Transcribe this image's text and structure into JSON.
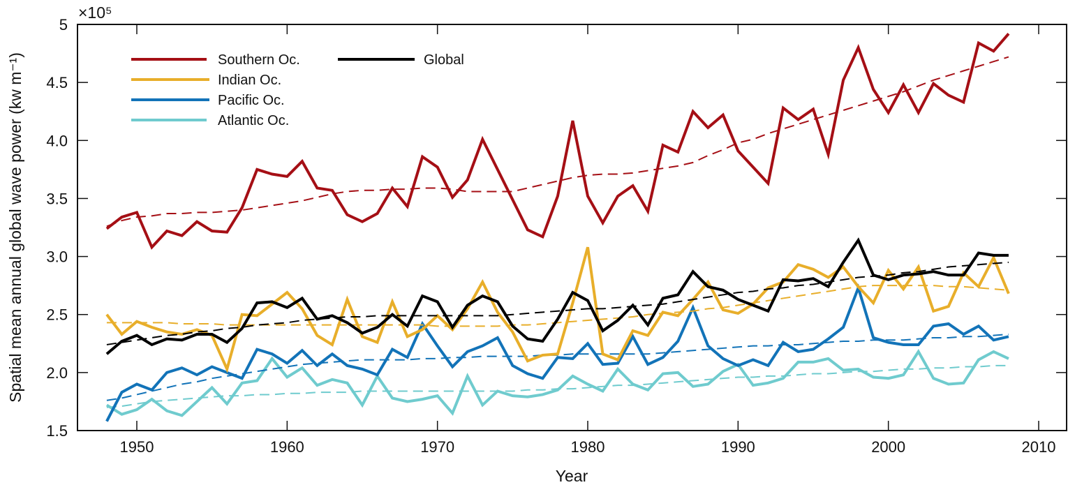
{
  "chart_data": {
    "type": "line",
    "title": "",
    "xlabel": "Year",
    "ylabel": "Spatial mean annual global wave power (kw m⁻¹)",
    "y_multiplier": "×10⁵",
    "xlim": [
      1944,
      2012
    ],
    "ylim": [
      1.5,
      5
    ],
    "xticks": [
      1950,
      1960,
      1970,
      1980,
      1990,
      2000,
      2010
    ],
    "yticks": [
      1.5,
      2.0,
      2.5,
      3.0,
      3.5,
      4.0,
      4.5,
      5
    ],
    "ytick_labels": [
      "1.5",
      "2.0",
      "2.5",
      "3.0",
      "3.5",
      "4.0",
      "4.5",
      "5"
    ],
    "legend_position": "top-left",
    "x": [
      1948,
      1949,
      1950,
      1951,
      1952,
      1953,
      1954,
      1955,
      1956,
      1957,
      1958,
      1959,
      1960,
      1961,
      1962,
      1963,
      1964,
      1965,
      1966,
      1967,
      1968,
      1969,
      1970,
      1971,
      1972,
      1973,
      1974,
      1975,
      1976,
      1977,
      1978,
      1979,
      1980,
      1981,
      1982,
      1983,
      1984,
      1985,
      1986,
      1987,
      1988,
      1989,
      1990,
      1991,
      1992,
      1993,
      1994,
      1995,
      1996,
      1997,
      1998,
      1999,
      2000,
      2001,
      2002,
      2003,
      2004,
      2005,
      2006,
      2007,
      2008
    ],
    "series": [
      {
        "name": "Southern Oc.",
        "color": "#a50f15",
        "values": [
          3.24,
          3.34,
          3.38,
          3.08,
          3.22,
          3.18,
          3.3,
          3.22,
          3.21,
          3.42,
          3.75,
          3.71,
          3.69,
          3.82,
          3.59,
          3.57,
          3.36,
          3.3,
          3.37,
          3.59,
          3.43,
          3.86,
          3.77,
          3.51,
          3.66,
          4.01,
          3.75,
          3.49,
          3.23,
          3.17,
          3.52,
          4.17,
          3.52,
          3.29,
          3.52,
          3.61,
          3.39,
          3.96,
          3.9,
          4.25,
          4.11,
          4.22,
          3.91,
          3.77,
          3.63,
          4.28,
          4.18,
          4.27,
          3.88,
          4.52,
          4.8,
          4.44,
          4.24,
          4.48,
          4.24,
          4.49,
          4.39,
          4.33,
          4.84,
          4.77,
          4.92
        ],
        "trend": [
          3.26,
          3.31,
          3.34,
          3.35,
          3.37,
          3.37,
          3.38,
          3.38,
          3.39,
          3.4,
          3.42,
          3.44,
          3.46,
          3.48,
          3.51,
          3.54,
          3.56,
          3.57,
          3.57,
          3.58,
          3.58,
          3.59,
          3.59,
          3.58,
          3.56,
          3.56,
          3.56,
          3.56,
          3.59,
          3.62,
          3.65,
          3.68,
          3.7,
          3.71,
          3.71,
          3.72,
          3.74,
          3.76,
          3.78,
          3.81,
          3.87,
          3.92,
          3.98,
          4.01,
          4.06,
          4.1,
          4.14,
          4.18,
          4.22,
          4.26,
          4.3,
          4.34,
          4.38,
          4.42,
          4.47,
          4.52,
          4.56,
          4.6,
          4.64,
          4.68,
          4.72
        ]
      },
      {
        "name": "Indian Oc.",
        "color": "#e8ae2a",
        "values": [
          2.5,
          2.33,
          2.44,
          2.39,
          2.35,
          2.33,
          2.37,
          2.32,
          2.03,
          2.5,
          2.49,
          2.59,
          2.69,
          2.55,
          2.32,
          2.24,
          2.63,
          2.31,
          2.26,
          2.61,
          2.31,
          2.37,
          2.49,
          2.37,
          2.55,
          2.78,
          2.52,
          2.35,
          2.1,
          2.15,
          2.16,
          2.6,
          3.08,
          2.16,
          2.11,
          2.36,
          2.32,
          2.52,
          2.49,
          2.63,
          2.78,
          2.54,
          2.51,
          2.59,
          2.73,
          2.78,
          2.93,
          2.89,
          2.82,
          2.91,
          2.74,
          2.6,
          2.88,
          2.72,
          2.91,
          2.53,
          2.57,
          2.86,
          2.74,
          2.99,
          2.68
        ],
        "trend": [
          2.43,
          2.43,
          2.43,
          2.43,
          2.43,
          2.42,
          2.42,
          2.42,
          2.41,
          2.41,
          2.41,
          2.41,
          2.41,
          2.41,
          2.41,
          2.41,
          2.41,
          2.41,
          2.41,
          2.41,
          2.41,
          2.41,
          2.4,
          2.4,
          2.4,
          2.4,
          2.4,
          2.41,
          2.41,
          2.42,
          2.43,
          2.44,
          2.45,
          2.46,
          2.47,
          2.48,
          2.5,
          2.51,
          2.52,
          2.53,
          2.55,
          2.56,
          2.58,
          2.6,
          2.62,
          2.64,
          2.66,
          2.68,
          2.7,
          2.72,
          2.74,
          2.75,
          2.75,
          2.75,
          2.75,
          2.75,
          2.74,
          2.74,
          2.73,
          2.72,
          2.71
        ]
      },
      {
        "name": "Pacific Oc.",
        "color": "#1273b8",
        "values": [
          1.58,
          1.83,
          1.9,
          1.85,
          2.0,
          2.04,
          1.98,
          2.05,
          2.0,
          1.95,
          2.2,
          2.16,
          2.08,
          2.19,
          2.06,
          2.16,
          2.06,
          2.03,
          1.98,
          2.2,
          2.13,
          2.42,
          2.23,
          2.05,
          2.18,
          2.23,
          2.3,
          2.06,
          1.99,
          1.95,
          2.13,
          2.12,
          2.25,
          2.07,
          2.08,
          2.31,
          2.07,
          2.13,
          2.27,
          2.56,
          2.23,
          2.12,
          2.06,
          2.11,
          2.06,
          2.26,
          2.18,
          2.2,
          2.29,
          2.39,
          2.73,
          2.3,
          2.26,
          2.24,
          2.24,
          2.4,
          2.42,
          2.33,
          2.4,
          2.28,
          2.31
        ],
        "trend": [
          1.76,
          1.78,
          1.81,
          1.84,
          1.87,
          1.9,
          1.92,
          1.95,
          1.97,
          1.99,
          2.01,
          2.03,
          2.05,
          2.07,
          2.08,
          2.09,
          2.1,
          2.11,
          2.11,
          2.11,
          2.11,
          2.12,
          2.12,
          2.13,
          2.13,
          2.14,
          2.14,
          2.14,
          2.14,
          2.15,
          2.15,
          2.16,
          2.16,
          2.16,
          2.16,
          2.16,
          2.16,
          2.17,
          2.18,
          2.19,
          2.2,
          2.21,
          2.22,
          2.23,
          2.23,
          2.24,
          2.24,
          2.25,
          2.26,
          2.27,
          2.27,
          2.28,
          2.28,
          2.28,
          2.29,
          2.3,
          2.3,
          2.31,
          2.31,
          2.32,
          2.33
        ]
      },
      {
        "name": "Atlantic Oc.",
        "color": "#6fcbce",
        "values": [
          1.72,
          1.64,
          1.68,
          1.77,
          1.67,
          1.63,
          1.75,
          1.87,
          1.73,
          1.91,
          1.93,
          2.12,
          1.96,
          2.04,
          1.89,
          1.94,
          1.91,
          1.72,
          1.97,
          1.78,
          1.75,
          1.77,
          1.8,
          1.65,
          1.97,
          1.72,
          1.84,
          1.8,
          1.79,
          1.81,
          1.85,
          1.97,
          1.9,
          1.84,
          2.03,
          1.9,
          1.85,
          1.99,
          2.0,
          1.88,
          1.9,
          2.01,
          2.07,
          1.89,
          1.91,
          1.95,
          2.09,
          2.09,
          2.12,
          2.02,
          2.03,
          1.96,
          1.95,
          1.98,
          2.18,
          1.95,
          1.9,
          1.91,
          2.11,
          2.18,
          2.12
        ],
        "trend": [
          1.7,
          1.71,
          1.73,
          1.75,
          1.76,
          1.77,
          1.78,
          1.79,
          1.8,
          1.8,
          1.81,
          1.81,
          1.82,
          1.82,
          1.83,
          1.83,
          1.83,
          1.84,
          1.84,
          1.84,
          1.84,
          1.84,
          1.84,
          1.84,
          1.84,
          1.84,
          1.84,
          1.84,
          1.85,
          1.85,
          1.86,
          1.86,
          1.87,
          1.88,
          1.89,
          1.89,
          1.9,
          1.91,
          1.92,
          1.93,
          1.94,
          1.95,
          1.96,
          1.96,
          1.97,
          1.97,
          1.98,
          1.99,
          1.99,
          2.0,
          2.01,
          2.01,
          2.02,
          2.03,
          2.03,
          2.04,
          2.04,
          2.05,
          2.05,
          2.06,
          2.06
        ]
      },
      {
        "name": "Global",
        "color": "#000000",
        "values": [
          2.16,
          2.27,
          2.32,
          2.24,
          2.29,
          2.28,
          2.33,
          2.33,
          2.26,
          2.38,
          2.6,
          2.61,
          2.56,
          2.64,
          2.46,
          2.49,
          2.43,
          2.34,
          2.39,
          2.5,
          2.4,
          2.66,
          2.61,
          2.39,
          2.58,
          2.66,
          2.61,
          2.4,
          2.29,
          2.27,
          2.46,
          2.69,
          2.62,
          2.36,
          2.45,
          2.58,
          2.41,
          2.64,
          2.67,
          2.87,
          2.74,
          2.71,
          2.63,
          2.58,
          2.53,
          2.8,
          2.79,
          2.81,
          2.74,
          2.95,
          3.14,
          2.84,
          2.8,
          2.84,
          2.85,
          2.87,
          2.84,
          2.84,
          3.03,
          3.01,
          3.01
        ],
        "trend": [
          2.24,
          2.26,
          2.28,
          2.3,
          2.32,
          2.33,
          2.35,
          2.36,
          2.38,
          2.39,
          2.41,
          2.42,
          2.43,
          2.45,
          2.46,
          2.47,
          2.48,
          2.48,
          2.49,
          2.49,
          2.49,
          2.49,
          2.49,
          2.49,
          2.49,
          2.49,
          2.49,
          2.5,
          2.51,
          2.52,
          2.53,
          2.54,
          2.55,
          2.55,
          2.56,
          2.57,
          2.58,
          2.59,
          2.61,
          2.63,
          2.65,
          2.67,
          2.69,
          2.7,
          2.72,
          2.73,
          2.75,
          2.76,
          2.78,
          2.8,
          2.82,
          2.83,
          2.84,
          2.86,
          2.87,
          2.89,
          2.91,
          2.92,
          2.93,
          2.94,
          2.95
        ]
      }
    ],
    "legend_columns": [
      [
        "Southern Oc.",
        "Indian Oc.",
        "Pacific Oc.",
        "Atlantic Oc."
      ],
      [
        "Global"
      ]
    ]
  }
}
